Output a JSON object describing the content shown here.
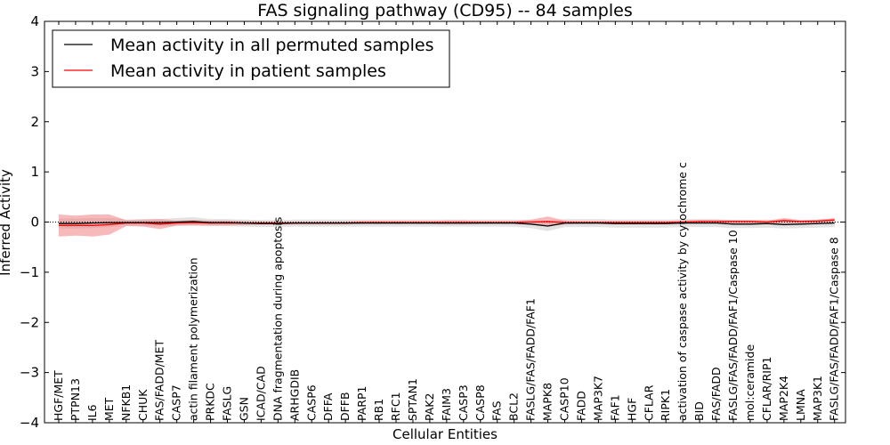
{
  "chart_data": {
    "type": "line",
    "title": "FAS signaling pathway (CD95) -- 84 samples",
    "xlabel": "Cellular Entities",
    "ylabel": "Inferred Activity",
    "ylim": [
      -4,
      4
    ],
    "yticks": [
      -4,
      -3,
      -2,
      -1,
      0,
      1,
      2,
      3,
      4
    ],
    "legend_position": "upper-left",
    "colors": {
      "patient": "#ff0000",
      "permuted": "#000000",
      "patient_band": "#f08080",
      "permuted_band": "#c8c8c8"
    },
    "categories": [
      "HGF/MET",
      "PTPN13",
      "IL6",
      "MET",
      "NFKB1",
      "CHUK",
      "FAS/FADD/MET",
      "CASP7",
      "actin filament polymerization",
      "PRKDC",
      "FASLG",
      "GSN",
      "ICAD/CAD",
      "DNA fragmentation during apoptosis",
      "ARHGDIB",
      "CASP6",
      "DFFA",
      "DFFB",
      "PARP1",
      "RB1",
      "RFC1",
      "SPTAN1",
      "PAK2",
      "FAIM3",
      "CASP3",
      "CASP8",
      "FAS",
      "BCL2",
      "FASLG/FAS/FADD/FAF1",
      "MAPK8",
      "CASP10",
      "FADD",
      "MAP3K7",
      "FAF1",
      "HGF",
      "CFLAR",
      "RIPK1",
      "activation of caspase activity by cytochrome c",
      "BID",
      "FAS/FADD",
      "FASLG/FAS/FADD/FAF1/Caspase 10",
      "mol:ceramide",
      "CFLAR/RIP1",
      "MAP2K4",
      "LMNA",
      "MAP3K1",
      "FASLG/FAS/FADD/FAF1/Caspase 8"
    ],
    "series": [
      {
        "name": "Mean activity in all permuted samples",
        "color": "#000000",
        "values": [
          -0.03,
          -0.03,
          -0.02,
          -0.01,
          -0.01,
          -0.01,
          -0.01,
          0.0,
          0.01,
          -0.01,
          -0.01,
          -0.02,
          -0.03,
          -0.03,
          -0.02,
          -0.02,
          -0.02,
          -0.02,
          -0.02,
          -0.02,
          -0.02,
          -0.02,
          -0.02,
          -0.02,
          -0.02,
          -0.02,
          -0.02,
          -0.02,
          -0.04,
          -0.08,
          -0.02,
          -0.02,
          -0.02,
          -0.03,
          -0.03,
          -0.03,
          -0.03,
          -0.02,
          -0.02,
          -0.02,
          -0.04,
          -0.04,
          -0.03,
          -0.05,
          -0.04,
          -0.03,
          -0.02
        ],
        "band": [
          0.1,
          0.1,
          0.1,
          0.09,
          0.06,
          0.07,
          0.07,
          0.08,
          0.09,
          0.07,
          0.07,
          0.07,
          0.07,
          0.07,
          0.07,
          0.07,
          0.07,
          0.07,
          0.07,
          0.07,
          0.07,
          0.07,
          0.07,
          0.07,
          0.07,
          0.07,
          0.07,
          0.07,
          0.08,
          0.1,
          0.08,
          0.08,
          0.08,
          0.08,
          0.08,
          0.08,
          0.08,
          0.08,
          0.08,
          0.08,
          0.08,
          0.08,
          0.08,
          0.08,
          0.08,
          0.08,
          0.08
        ]
      },
      {
        "name": "Mean activity in patient samples",
        "color": "#ff0000",
        "values": [
          -0.07,
          -0.07,
          -0.07,
          -0.05,
          -0.02,
          -0.02,
          -0.04,
          -0.02,
          -0.01,
          -0.02,
          -0.02,
          -0.02,
          -0.02,
          -0.02,
          -0.02,
          -0.02,
          -0.02,
          -0.02,
          -0.01,
          -0.01,
          -0.01,
          -0.01,
          -0.01,
          -0.01,
          -0.01,
          -0.01,
          -0.01,
          -0.01,
          0.0,
          0.01,
          -0.01,
          -0.01,
          -0.01,
          -0.01,
          -0.01,
          -0.01,
          -0.01,
          0.0,
          0.01,
          0.01,
          0.01,
          0.01,
          0.0,
          0.03,
          0.01,
          0.02,
          0.04
        ],
        "band": [
          0.22,
          0.2,
          0.22,
          0.2,
          0.06,
          0.07,
          0.1,
          0.05,
          0.05,
          0.05,
          0.05,
          0.04,
          0.03,
          0.03,
          0.03,
          0.03,
          0.03,
          0.03,
          0.03,
          0.03,
          0.03,
          0.03,
          0.03,
          0.04,
          0.04,
          0.03,
          0.03,
          0.03,
          0.05,
          0.1,
          0.04,
          0.03,
          0.03,
          0.03,
          0.03,
          0.03,
          0.03,
          0.03,
          0.03,
          0.03,
          0.03,
          0.03,
          0.03,
          0.05,
          0.03,
          0.03,
          0.04
        ]
      }
    ]
  }
}
